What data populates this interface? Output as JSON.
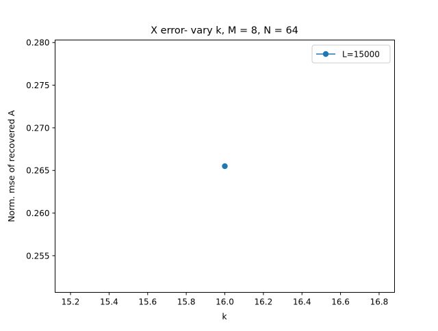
{
  "chart_data": {
    "type": "line",
    "title": "X error- vary k, M = 8, N = 64",
    "xlabel": "k",
    "ylabel": "Norm. mse of recovered A",
    "xlim": [
      15.12,
      16.88
    ],
    "ylim": [
      0.2507,
      0.2803
    ],
    "xticks": [
      15.2,
      15.4,
      15.6,
      15.8,
      16.0,
      16.2,
      16.4,
      16.6,
      16.8
    ],
    "xtick_labels": [
      "15.2",
      "15.4",
      "15.6",
      "15.8",
      "16.0",
      "16.2",
      "16.4",
      "16.6",
      "16.8"
    ],
    "yticks": [
      0.255,
      0.26,
      0.265,
      0.27,
      0.275,
      0.28
    ],
    "ytick_labels": [
      "0.255",
      "0.260",
      "0.265",
      "0.270",
      "0.275",
      "0.280"
    ],
    "grid": false,
    "legend_position": "upper right",
    "series": [
      {
        "name": "L=15000",
        "color": "#1f77b4",
        "marker": "circle",
        "x": [
          16.0
        ],
        "y": [
          0.2655
        ]
      }
    ]
  }
}
